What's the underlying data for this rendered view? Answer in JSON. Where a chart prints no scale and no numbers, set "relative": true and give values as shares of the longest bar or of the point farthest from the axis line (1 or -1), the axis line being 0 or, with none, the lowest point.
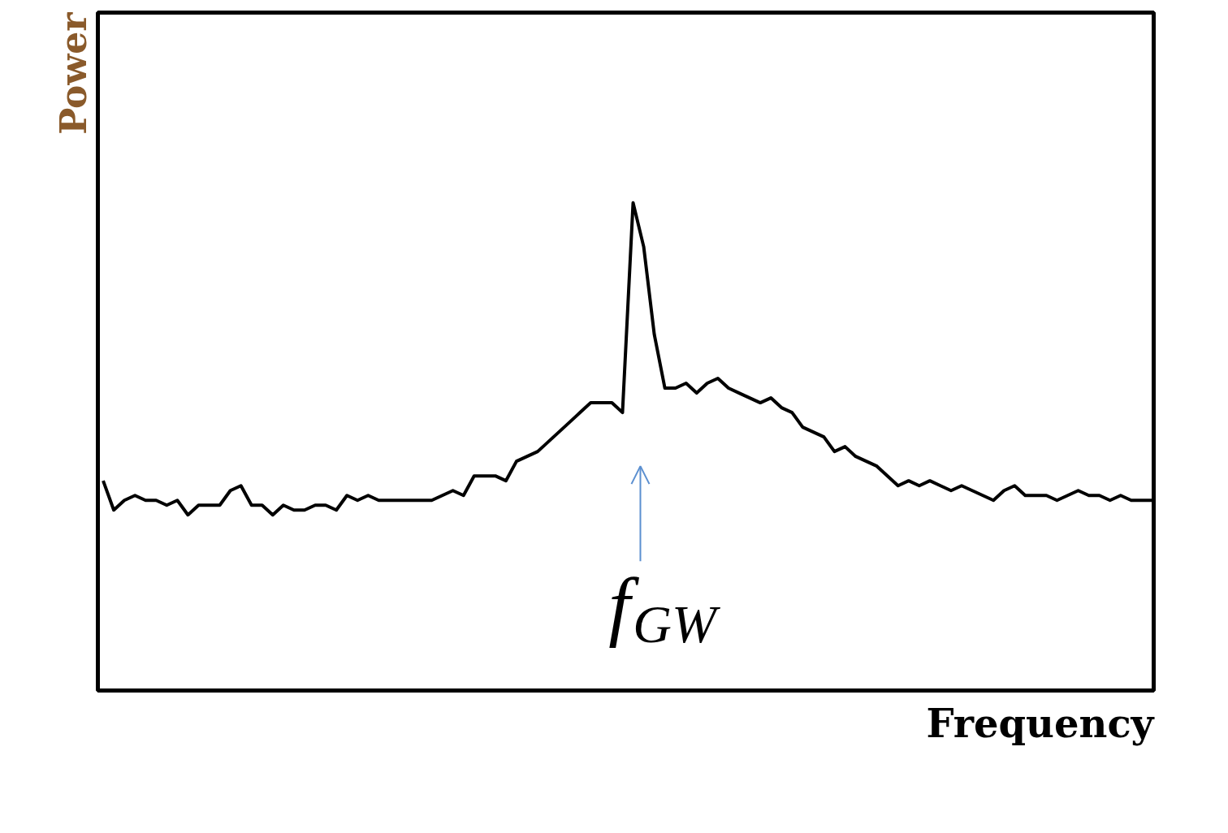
{
  "chart_data": {
    "type": "line",
    "xlabel": "Frequency",
    "ylabel": "Power",
    "relative": true,
    "grid": false,
    "marker": "none",
    "line_style": "solid",
    "categories": [
      null,
      null,
      null,
      null,
      null,
      null,
      null,
      null,
      null,
      null,
      null,
      null,
      null,
      null,
      null,
      null,
      null,
      null,
      null,
      null,
      null,
      null,
      null,
      null,
      null,
      null,
      null,
      null,
      null,
      null,
      null,
      null,
      null,
      null,
      null,
      null,
      null,
      null,
      null,
      null,
      null,
      null,
      null,
      null,
      null,
      null,
      null,
      null,
      null,
      null,
      null,
      null,
      null,
      null,
      null,
      null,
      null,
      null,
      null,
      null,
      null,
      null,
      null,
      null,
      null,
      null,
      null,
      null,
      null,
      null,
      null,
      null,
      null,
      null,
      null,
      null,
      null,
      null,
      null,
      null,
      null,
      null,
      null,
      null,
      null,
      null,
      null,
      null,
      null,
      null,
      null,
      null,
      null,
      null,
      null,
      null,
      null,
      null,
      null,
      null
    ],
    "series": [
      {
        "color": "#000000",
        "values": [
          0.43,
          0.37,
          0.39,
          0.4,
          0.39,
          0.39,
          0.38,
          0.39,
          0.36,
          0.38,
          0.38,
          0.38,
          0.41,
          0.42,
          0.38,
          0.38,
          0.36,
          0.38,
          0.37,
          0.37,
          0.38,
          0.38,
          0.37,
          0.4,
          0.39,
          0.4,
          0.39,
          0.39,
          0.39,
          0.39,
          0.39,
          0.39,
          0.4,
          0.41,
          0.4,
          0.44,
          0.44,
          0.44,
          0.43,
          0.47,
          0.48,
          0.49,
          0.51,
          0.53,
          0.55,
          0.57,
          0.59,
          0.59,
          0.59,
          0.57,
          1.0,
          0.91,
          0.73,
          0.62,
          0.62,
          0.63,
          0.61,
          0.63,
          0.64,
          0.62,
          0.61,
          0.6,
          0.59,
          0.6,
          0.58,
          0.57,
          0.54,
          0.53,
          0.52,
          0.49,
          0.5,
          0.48,
          0.47,
          0.46,
          0.44,
          0.42,
          0.43,
          0.42,
          0.43,
          0.42,
          0.41,
          0.42,
          0.41,
          0.4,
          0.39,
          0.41,
          0.42,
          0.4,
          0.4,
          0.4,
          0.39,
          0.4,
          0.41,
          0.4,
          0.4,
          0.39,
          0.4,
          0.39,
          0.39,
          0.39
        ]
      }
    ],
    "annotations": [
      "f$_{GW}$"
    ]
  }
}
